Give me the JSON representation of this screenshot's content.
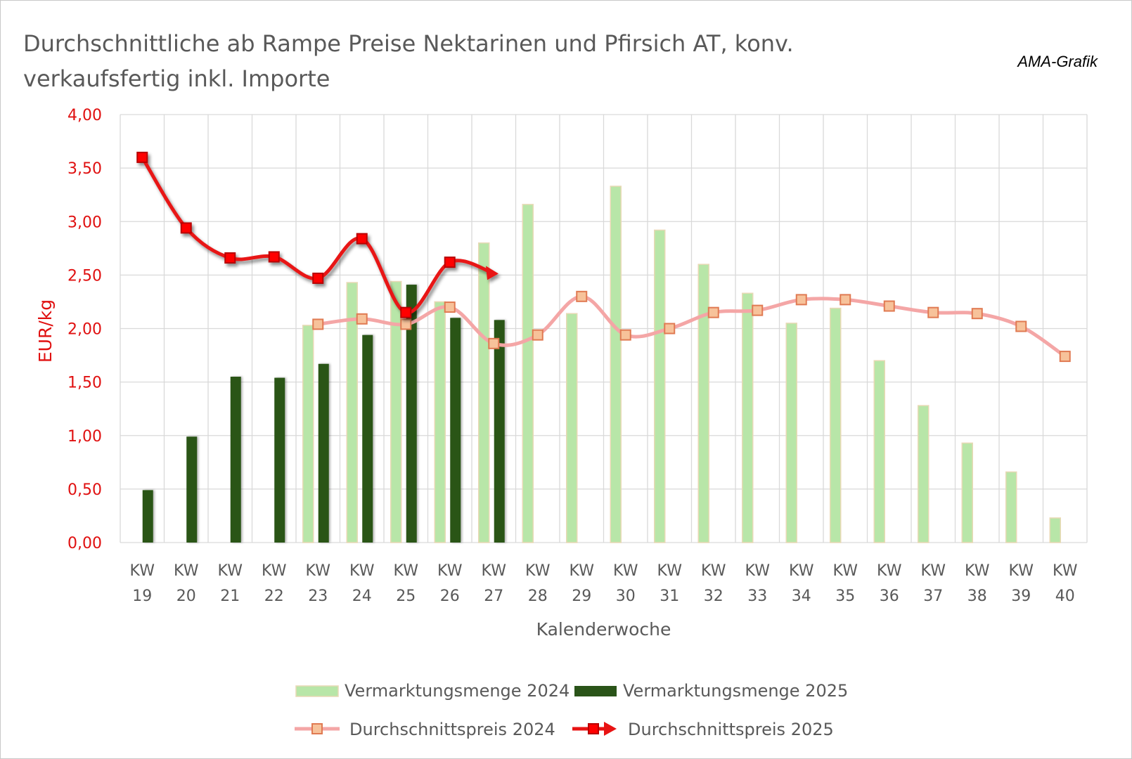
{
  "title": "Durchschnittliche ab Rampe Preise Nektarinen und Pfirsich AT, konv. verkaufsfertig inkl. Importe",
  "credit": "AMA-Grafik",
  "colors": {
    "bar_2024": "#b8e6a8",
    "bar_2024_edge": "#e8d9b5",
    "bar_2025": "#2a5419",
    "price_2024_line": "#f4a6a6",
    "price_2024_marker": "#f7c29a",
    "price_2024_marker_edge": "#e07a52",
    "price_2025_line": "#e81313",
    "price_2025_marker": "#ff0000",
    "price_2025_marker_edge": "#b80000",
    "axis_label": "#e01010",
    "grid": "#d9d9d9"
  },
  "chart_data": {
    "type": "bar",
    "categories": [
      "KW 19",
      "KW 20",
      "KW 21",
      "KW 22",
      "KW 23",
      "KW 24",
      "KW 25",
      "KW 26",
      "KW 27",
      "KW 28",
      "KW 29",
      "KW 30",
      "KW 31",
      "KW 32",
      "KW 33",
      "KW 34",
      "KW 35",
      "KW 36",
      "KW 37",
      "KW 38",
      "KW 39",
      "KW 40"
    ],
    "xlabel": "Kalenderwoche",
    "ylabel": "EUR/kg",
    "ylim": [
      0,
      4
    ],
    "yticks": [
      "0,00",
      "0,50",
      "1,00",
      "1,50",
      "2,00",
      "2,50",
      "3,00",
      "3,50",
      "4,00"
    ],
    "grid": true,
    "legend_position": "bottom",
    "series": [
      {
        "name": "Vermarktungsmenge 2024",
        "type": "bar",
        "values": [
          null,
          null,
          null,
          null,
          2.03,
          2.43,
          2.44,
          2.25,
          2.8,
          3.16,
          2.14,
          3.33,
          2.92,
          2.6,
          2.33,
          2.05,
          2.19,
          1.7,
          1.28,
          0.93,
          0.66,
          0.23
        ]
      },
      {
        "name": "Vermarktungsmenge 2025",
        "type": "bar",
        "values": [
          0.49,
          0.99,
          1.55,
          1.54,
          1.67,
          1.94,
          2.41,
          2.1,
          2.08,
          null,
          null,
          null,
          null,
          null,
          null,
          null,
          null,
          null,
          null,
          null,
          null,
          null
        ]
      },
      {
        "name": "Durchschnittspreis 2024",
        "type": "line",
        "values": [
          null,
          null,
          null,
          null,
          2.04,
          2.09,
          2.04,
          2.2,
          1.86,
          1.94,
          2.3,
          1.94,
          2.0,
          2.15,
          2.17,
          2.27,
          2.27,
          2.21,
          2.15,
          2.14,
          2.02,
          1.74
        ]
      },
      {
        "name": "Durchschnittspreis 2025",
        "type": "line",
        "values": [
          3.6,
          2.94,
          2.66,
          2.67,
          2.47,
          2.84,
          2.15,
          2.62,
          null,
          null,
          null,
          null,
          null,
          null,
          null,
          null,
          null,
          null,
          null,
          null,
          null,
          null
        ]
      }
    ]
  }
}
